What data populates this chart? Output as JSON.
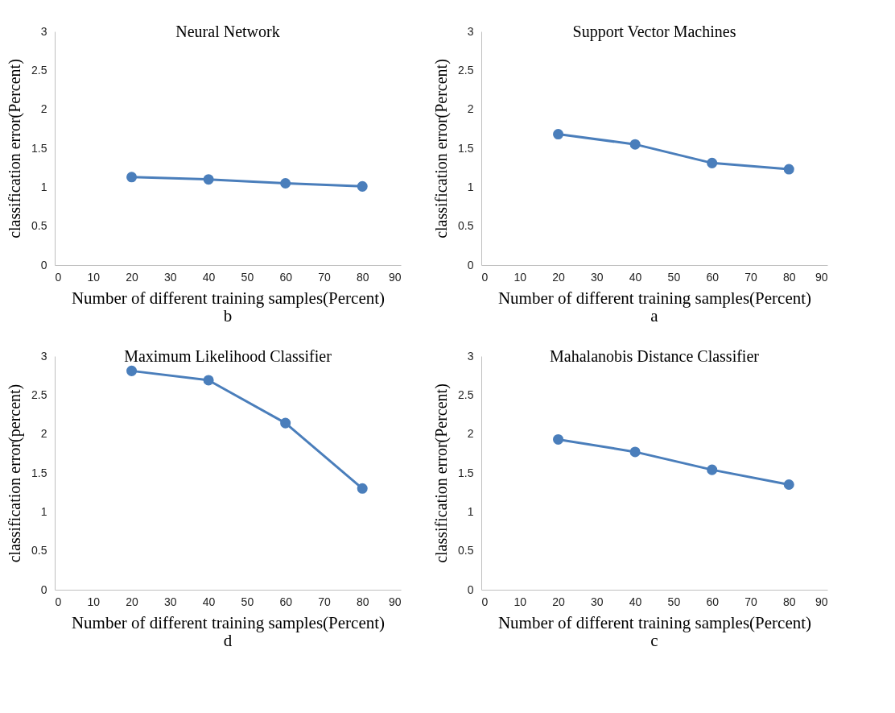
{
  "chart_data": [
    {
      "type": "line",
      "title": "Neural Network",
      "xlabel": "Number  of different training samples(Percent)",
      "ylabel": "classification  error(Percent)",
      "annotations": [
        "b"
      ],
      "x": [
        20,
        40,
        60,
        80
      ],
      "series": [
        {
          "color": "#4a7ebb",
          "values": [
            1.13,
            1.1,
            1.05,
            1.01
          ]
        }
      ],
      "xlim": [
        0,
        90
      ],
      "xticks": [
        0,
        10,
        20,
        30,
        40,
        50,
        60,
        70,
        80,
        90
      ],
      "ylim": [
        0,
        3
      ],
      "yticks": [
        0,
        0.5,
        1,
        1.5,
        2,
        2.5,
        3
      ],
      "grid": false,
      "marker": "circle",
      "line_style": "solid"
    },
    {
      "type": "line",
      "title": "Support  Vector Machines",
      "xlabel": "Number  of different training  samples(Percent)",
      "ylabel": "classification  error(Percent)",
      "annotations": [
        "a"
      ],
      "x": [
        20,
        40,
        60,
        80
      ],
      "series": [
        {
          "color": "#4a7ebb",
          "values": [
            1.68,
            1.55,
            1.31,
            1.23
          ]
        }
      ],
      "xlim": [
        0,
        90
      ],
      "xticks": [
        0,
        10,
        20,
        30,
        40,
        50,
        60,
        70,
        80,
        90
      ],
      "ylim": [
        0,
        3
      ],
      "yticks": [
        0,
        0.5,
        1,
        1.5,
        2,
        2.5,
        3
      ],
      "grid": false,
      "marker": "circle",
      "line_style": "solid"
    },
    {
      "type": "line",
      "title": "Maximum Likelihood Classifier",
      "xlabel": "Number  of different training  samples(Percent)",
      "ylabel": "classification  error(percent)",
      "annotations": [
        "d"
      ],
      "x": [
        20,
        40,
        60,
        80
      ],
      "series": [
        {
          "color": "#4a7ebb",
          "values": [
            2.81,
            2.69,
            2.14,
            1.3
          ]
        }
      ],
      "xlim": [
        0,
        90
      ],
      "xticks": [
        0,
        10,
        20,
        30,
        40,
        50,
        60,
        70,
        80,
        90
      ],
      "ylim": [
        0,
        3
      ],
      "yticks": [
        0,
        0.5,
        1,
        1.5,
        2,
        2.5,
        3
      ],
      "grid": false,
      "marker": "circle",
      "line_style": "solid"
    },
    {
      "type": "line",
      "title": "Mahalanobis  Distance Classifier",
      "xlabel": "Number  of different training  samples(Percent)",
      "ylabel": "classification  error(Percent)",
      "annotations": [
        "c"
      ],
      "x": [
        20,
        40,
        60,
        80
      ],
      "series": [
        {
          "color": "#4a7ebb",
          "values": [
            1.93,
            1.77,
            1.54,
            1.35
          ]
        }
      ],
      "xlim": [
        0,
        90
      ],
      "xticks": [
        0,
        10,
        20,
        30,
        40,
        50,
        60,
        70,
        80,
        90
      ],
      "ylim": [
        0,
        3
      ],
      "yticks": [
        0,
        0.5,
        1,
        1.5,
        2,
        2.5,
        3
      ],
      "grid": false,
      "marker": "circle",
      "line_style": "solid"
    }
  ]
}
